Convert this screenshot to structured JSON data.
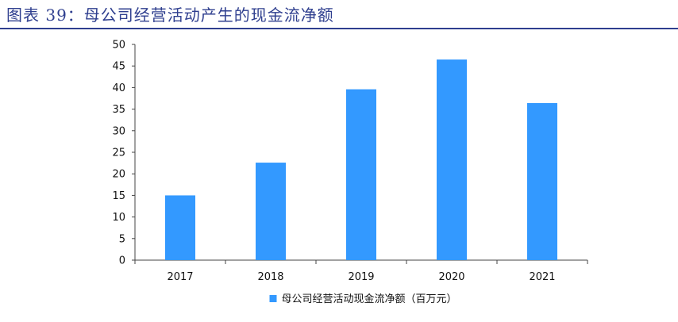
{
  "figure": {
    "title": "图表 39：母公司经营活动产生的现金流净额"
  },
  "chart_data": {
    "type": "bar",
    "title": "",
    "xlabel": "",
    "ylabel": "",
    "categories": [
      "2017",
      "2018",
      "2019",
      "2020",
      "2021"
    ],
    "series": [
      {
        "name": "母公司经营活动现金流净额（百万元）",
        "values": [
          15.0,
          22.6,
          39.6,
          46.5,
          36.4
        ],
        "color": "#3399ff"
      }
    ],
    "ylim": [
      0,
      50
    ],
    "yticks": [
      0,
      5,
      10,
      15,
      20,
      25,
      30,
      35,
      40,
      45,
      50
    ],
    "grid": false,
    "legend_position": "bottom-center"
  }
}
